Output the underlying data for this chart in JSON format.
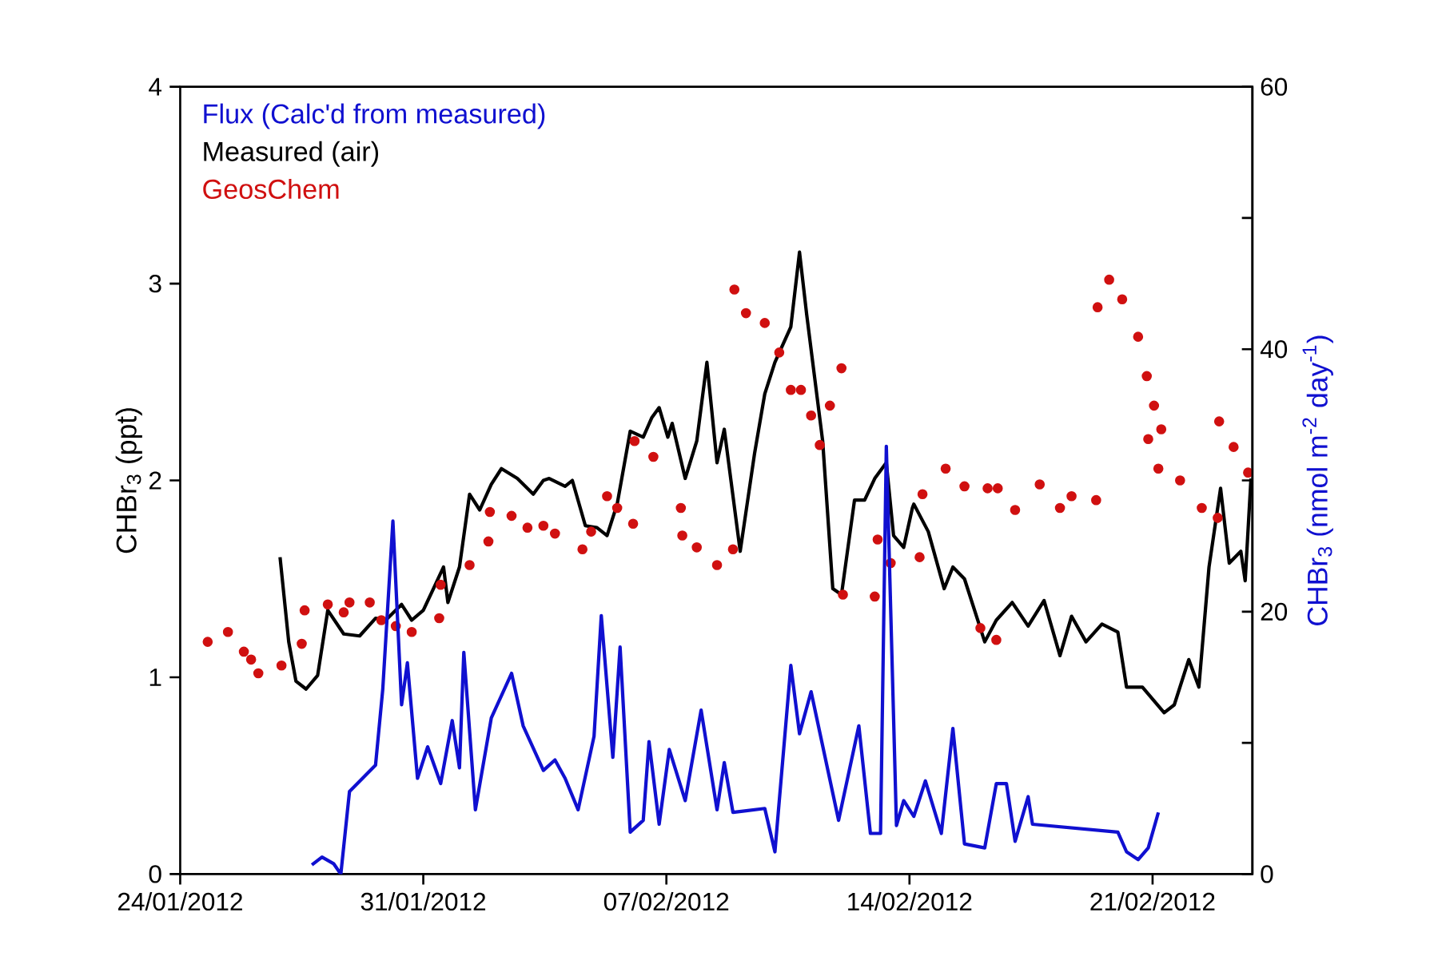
{
  "chart_data": {
    "type": "line",
    "ylabel": "CHBr$_{3}$ (ppt)",
    "y2label": "CHBr$_{3}$ (nmol m$^{-2}$ day$^{-1}$)",
    "xlim": [
      "2012-01-24",
      "2012-02-23T21:00"
    ],
    "xticks": [
      {
        "value": "2012-01-24",
        "label": "24/01/2012"
      },
      {
        "value": "2012-01-31",
        "label": "31/01/2012"
      },
      {
        "value": "2012-02-07",
        "label": "07/02/2012"
      },
      {
        "value": "2012-02-14",
        "label": "14/02/2012"
      },
      {
        "value": "2012-02-21",
        "label": "21/02/2012"
      }
    ],
    "ylim": [
      0,
      4
    ],
    "yticks": [
      0,
      1,
      2,
      3,
      4
    ],
    "y2lim": [
      0,
      60
    ],
    "y2ticks": [
      0,
      {
        "value": 10,
        "label": null
      },
      20,
      {
        "value": 30,
        "label": null
      },
      40,
      {
        "value": 50,
        "label": null
      },
      60
    ],
    "legend": "top left",
    "series": [
      {
        "name": "Flux (Calc'd from measured)",
        "color": "#1010d0",
        "axis": "y2",
        "x": [
          "2012-01-27T19:00",
          "2012-01-28T02:00",
          "2012-01-28T10:00",
          "2012-01-28T15:00",
          "2012-01-28T21:00",
          "2012-01-29T15:00",
          "2012-01-29T20:00",
          "2012-01-30T03:00",
          "2012-01-30T09:00",
          "2012-01-30T13:00",
          "2012-01-30T20:00",
          "2012-01-31T03:00",
          "2012-01-31T12:00",
          "2012-01-31T20:00",
          "2012-02-01T01:00",
          "2012-02-01T04:00",
          "2012-02-01T12:00",
          "2012-02-01T23:00",
          "2012-02-02T13:00",
          "2012-02-02T21:00",
          "2012-02-03T11:00",
          "2012-02-03T19:00",
          "2012-02-04T02:00",
          "2012-02-04T11:00",
          "2012-02-04T22:00",
          "2012-02-05T03:00",
          "2012-02-05T11:00",
          "2012-02-05T16:00",
          "2012-02-05T23:00",
          "2012-02-06T08:00",
          "2012-02-06T12:00",
          "2012-02-06T19:00",
          "2012-02-07T02:00",
          "2012-02-07T13:00",
          "2012-02-08T00:00",
          "2012-02-08T11:00",
          "2012-02-08T16:00",
          "2012-02-08T22:00",
          "2012-02-09T20:00",
          "2012-02-10T03:00",
          "2012-02-10T14:00",
          "2012-02-10T20:00",
          "2012-02-11T04:00",
          "2012-02-11T23:00",
          "2012-02-12T13:00",
          "2012-02-12T21:00",
          "2012-02-13T04:00",
          "2012-02-13T08:00",
          "2012-02-13T15:00",
          "2012-02-13T20:00",
          "2012-02-14T03:00",
          "2012-02-14T11:00",
          "2012-02-14T22:00",
          "2012-02-15T06:00",
          "2012-02-15T14:00",
          "2012-02-16T04:00",
          "2012-02-16T12:00",
          "2012-02-16T19:00",
          "2012-02-17T01:00",
          "2012-02-17T10:00",
          "2012-02-17T13:00",
          "2012-02-20T00:00",
          "2012-02-20T06:00",
          "2012-02-20T14:00",
          "2012-02-20T21:00",
          "2012-02-21T04:00"
        ],
        "values": [
          0.7,
          1.3,
          0.8,
          0,
          6.3,
          8.3,
          14.1,
          26.9,
          12.9,
          16.1,
          7.3,
          9.7,
          6.9,
          11.7,
          8.1,
          16.9,
          4.9,
          11.9,
          15.3,
          11.3,
          7.9,
          8.7,
          7.3,
          4.9,
          10.5,
          19.7,
          8.9,
          17.3,
          3.2,
          4.1,
          10.1,
          3.8,
          9.5,
          5.6,
          12.5,
          4.9,
          8.5,
          4.7,
          5.0,
          1.7,
          15.9,
          10.7,
          13.9,
          4.1,
          11.3,
          3.1,
          3.1,
          32.6,
          3.7,
          5.6,
          4.4,
          7.1,
          3.1,
          11.1,
          2.3,
          2.0,
          6.9,
          6.9,
          2.5,
          5.9,
          3.8,
          3.2,
          1.7,
          1.1,
          2.0,
          4.7
        ]
      },
      {
        "name": "Measured (air)",
        "color": "#000000",
        "x": [
          "2012-01-26T21:00",
          "2012-01-27T03:00",
          "2012-01-27T08:00",
          "2012-01-27T15:00",
          "2012-01-27T23:00",
          "2012-01-28T06:00",
          "2012-01-28T17:00",
          "2012-01-29T04:00",
          "2012-01-29T15:00",
          "2012-01-29T22:00",
          "2012-01-30T09:00",
          "2012-01-30T16:00",
          "2012-01-31T00:00",
          "2012-01-31T07:00",
          "2012-01-31T14:00",
          "2012-01-31T17:00",
          "2012-02-01T01:00",
          "2012-02-01T08:00",
          "2012-02-01T15:00",
          "2012-02-01T23:00",
          "2012-02-02T06:00",
          "2012-02-02T17:00",
          "2012-02-03T04:00",
          "2012-02-03T11:00",
          "2012-02-03T15:00",
          "2012-02-04T02:00",
          "2012-02-04T07:00",
          "2012-02-04T16:00",
          "2012-02-05T00:00",
          "2012-02-05T07:00",
          "2012-02-05T14:00",
          "2012-02-05T23:00",
          "2012-02-06T08:00",
          "2012-02-06T14:00",
          "2012-02-06T19:00",
          "2012-02-07T01:00",
          "2012-02-07T04:00",
          "2012-02-07T13:00",
          "2012-02-07T21:00",
          "2012-02-08T04:00",
          "2012-02-08T11:00",
          "2012-02-08T16:00",
          "2012-02-09T03:00",
          "2012-02-09T13:00",
          "2012-02-09T20:00",
          "2012-02-10T03:00",
          "2012-02-10T14:00",
          "2012-02-10T20:00",
          "2012-02-11T01:00",
          "2012-02-11T12:00",
          "2012-02-11T19:00",
          "2012-02-12T01:00",
          "2012-02-12T10:00",
          "2012-02-12T17:00",
          "2012-02-13T00:00",
          "2012-02-13T08:00",
          "2012-02-13T13:00",
          "2012-02-13T20:00",
          "2012-02-14T02:00",
          "2012-02-14T03:00",
          "2012-02-14T13:00",
          "2012-02-15T00:00",
          "2012-02-15T06:00",
          "2012-02-15T14:00",
          "2012-02-16T04:00",
          "2012-02-16T12:00",
          "2012-02-16T23:00",
          "2012-02-17T10:00",
          "2012-02-17T21:00",
          "2012-02-18T08:00",
          "2012-02-18T16:00",
          "2012-02-19T02:00",
          "2012-02-19T13:00",
          "2012-02-20T00:00",
          "2012-02-20T06:00",
          "2012-02-20T17:00",
          "2012-02-21T08:00",
          "2012-02-21T15:00",
          "2012-02-22T01:00",
          "2012-02-22T08:00",
          "2012-02-22T15:00",
          "2012-02-22T23:00",
          "2012-02-23T05:00",
          "2012-02-23T13:00",
          "2012-02-23T16:00",
          "2012-02-23T20:00"
        ],
        "values": [
          1.61,
          1.18,
          0.98,
          0.94,
          1.01,
          1.34,
          1.22,
          1.21,
          1.3,
          1.29,
          1.37,
          1.29,
          1.34,
          1.45,
          1.56,
          1.38,
          1.56,
          1.93,
          1.85,
          1.98,
          2.06,
          2.01,
          1.93,
          2.0,
          2.01,
          1.97,
          2.0,
          1.77,
          1.76,
          1.72,
          1.88,
          2.25,
          2.22,
          2.32,
          2.37,
          2.22,
          2.29,
          2.01,
          2.2,
          2.6,
          2.09,
          2.26,
          1.64,
          2.14,
          2.44,
          2.6,
          2.78,
          3.16,
          2.84,
          2.2,
          1.45,
          1.42,
          1.9,
          1.9,
          2.01,
          2.09,
          1.72,
          1.66,
          1.86,
          1.88,
          1.74,
          1.45,
          1.56,
          1.5,
          1.18,
          1.29,
          1.38,
          1.26,
          1.39,
          1.11,
          1.31,
          1.18,
          1.27,
          1.23,
          0.95,
          0.95,
          0.82,
          0.86,
          1.09,
          0.95,
          1.56,
          1.96,
          1.58,
          1.64,
          1.49,
          2.01
        ]
      },
      {
        "name": "GeosChem",
        "color": "#d01010",
        "type": "scatter",
        "x": [
          "2012-01-24T19:00",
          "2012-01-25T09:00",
          "2012-01-25T20:00",
          "2012-01-26T01:00",
          "2012-01-26T06:00",
          "2012-01-26T22:00",
          "2012-01-27T12:00",
          "2012-01-27T14:00",
          "2012-01-28T06:00",
          "2012-01-28T17:00",
          "2012-01-28T21:00",
          "2012-01-29T11:00",
          "2012-01-29T19:00",
          "2012-01-30T05:00",
          "2012-01-30T16:00",
          "2012-01-31T11:00",
          "2012-01-31T12:00",
          "2012-02-01T08:00",
          "2012-02-01T21:00",
          "2012-02-01T22:00",
          "2012-02-02T13:00",
          "2012-02-03T00:00",
          "2012-02-03T11:00",
          "2012-02-03T19:00",
          "2012-02-04T14:00",
          "2012-02-04T20:00",
          "2012-02-05T07:00",
          "2012-02-05T14:00",
          "2012-02-06T01:00",
          "2012-02-06T02:00",
          "2012-02-06T15:00",
          "2012-02-07T10:00",
          "2012-02-07T11:00",
          "2012-02-07T21:00",
          "2012-02-08T11:00",
          "2012-02-08T22:00",
          "2012-02-08T23:00",
          "2012-02-09T07:00",
          "2012-02-09T20:00",
          "2012-02-10T06:00",
          "2012-02-10T14:00",
          "2012-02-10T21:00",
          "2012-02-11T04:00",
          "2012-02-11T10:00",
          "2012-02-11T17:00",
          "2012-02-12T01:00",
          "2012-02-12T02:00",
          "2012-02-13T00:00",
          "2012-02-13T02:00",
          "2012-02-13T11:00",
          "2012-02-14T07:00",
          "2012-02-14T09:00",
          "2012-02-15T01:00",
          "2012-02-15T14:00",
          "2012-02-16T06:00",
          "2012-02-16T01:00",
          "2012-02-16T12:00",
          "2012-02-16T13:00",
          "2012-02-17T01:00",
          "2012-02-17T18:00",
          "2012-02-18T08:00",
          "2012-02-18T16:00",
          "2012-02-19T09:00",
          "2012-02-19T10:00",
          "2012-02-19T18:00",
          "2012-02-20T03:00",
          "2012-02-20T14:00",
          "2012-02-20T20:00",
          "2012-02-21T01:00",
          "2012-02-21T06:00",
          "2012-02-20T21:00",
          "2012-02-21T04:00",
          "2012-02-21T19:00",
          "2012-02-22T10:00",
          "2012-02-22T21:00",
          "2012-02-22T22:00",
          "2012-02-23T08:00",
          "2012-02-23T18:00"
        ],
        "values": [
          1.18,
          1.23,
          1.13,
          1.09,
          1.02,
          1.06,
          1.17,
          1.34,
          1.37,
          1.33,
          1.38,
          1.38,
          1.29,
          1.26,
          1.23,
          1.3,
          1.47,
          1.57,
          1.69,
          1.84,
          1.82,
          1.76,
          1.77,
          1.73,
          1.65,
          1.74,
          1.92,
          1.86,
          1.78,
          2.2,
          2.12,
          1.86,
          1.72,
          1.66,
          1.57,
          1.65,
          2.97,
          2.85,
          2.8,
          2.65,
          2.46,
          2.46,
          2.33,
          2.18,
          2.38,
          2.57,
          1.42,
          1.41,
          1.7,
          1.58,
          1.61,
          1.93,
          2.06,
          1.97,
          1.96,
          1.25,
          1.19,
          1.96,
          1.85,
          1.98,
          1.86,
          1.92,
          1.9,
          2.88,
          3.02,
          2.92,
          2.73,
          2.53,
          2.38,
          2.26,
          2.21,
          2.06,
          2.0,
          1.86,
          1.81,
          2.3,
          2.17,
          2.04
        ]
      }
    ]
  }
}
